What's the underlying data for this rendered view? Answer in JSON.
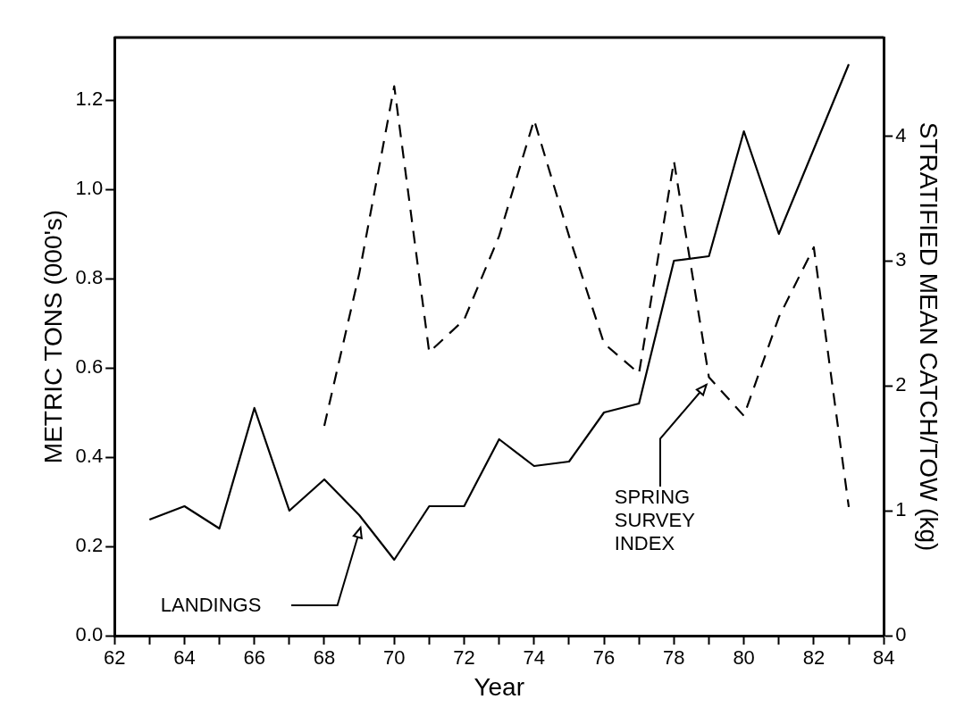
{
  "chart_data": {
    "type": "line",
    "xlabel": "Year",
    "ylabel": "METRIC TONS (000's)",
    "y2label": "STRATIFIED MEAN CATCH/TOW (kg)",
    "series": [
      {
        "line_style": "solid",
        "color": "#000000",
        "x": [
          63,
          64,
          65,
          66,
          67,
          68,
          69,
          70,
          71,
          72,
          73,
          74,
          75,
          76,
          77,
          78,
          79,
          80,
          81,
          82,
          83
        ],
        "values": [
          0.26,
          0.29,
          0.24,
          0.51,
          0.28,
          0.35,
          0.27,
          0.17,
          0.29,
          0.29,
          0.44,
          0.38,
          0.39,
          0.5,
          0.52,
          0.84,
          0.85,
          1.13,
          0.9,
          1.09,
          1.28
        ]
      },
      {
        "line_style": "dashed",
        "axis": "y2",
        "color": "#000000",
        "x": [
          68,
          69,
          70,
          71,
          72,
          73,
          74,
          75,
          76,
          77,
          78,
          79,
          80,
          81,
          82,
          83
        ],
        "values": [
          1.68,
          2.9,
          4.4,
          2.27,
          2.53,
          3.2,
          4.13,
          3.2,
          2.34,
          2.1,
          3.8,
          2.07,
          1.76,
          2.55,
          3.11,
          1.03
        ]
      }
    ],
    "xlim": [
      62,
      84
    ],
    "xticks": [
      62,
      {
        "value": 63,
        "label": null
      },
      64,
      {
        "value": 65,
        "label": null
      },
      66,
      {
        "value": 67,
        "label": null
      },
      68,
      {
        "value": 69,
        "label": null
      },
      70,
      {
        "value": 71,
        "label": null
      },
      72,
      {
        "value": 73,
        "label": null
      },
      74,
      {
        "value": 75,
        "label": null
      },
      76,
      {
        "value": 77,
        "label": null
      },
      78,
      {
        "value": 79,
        "label": null
      },
      80,
      {
        "value": 81,
        "label": null
      },
      82,
      {
        "value": 83,
        "label": null
      },
      84
    ],
    "ylim": [
      0,
      1.34
    ],
    "yticks": [
      {
        "value": 0,
        "label": "0.0"
      },
      0.2,
      0.4,
      0.6,
      0.8,
      {
        "value": 1,
        "label": "1.0"
      },
      1.2
    ],
    "y2lim": [
      0,
      4.79
    ],
    "y2ticks": [
      0,
      1,
      2,
      3,
      4
    ],
    "grid": false,
    "legend": false,
    "marker": "none",
    "annotations": [
      "LANDINGS",
      "SPRING\nSURVEY\nINDEX"
    ]
  }
}
